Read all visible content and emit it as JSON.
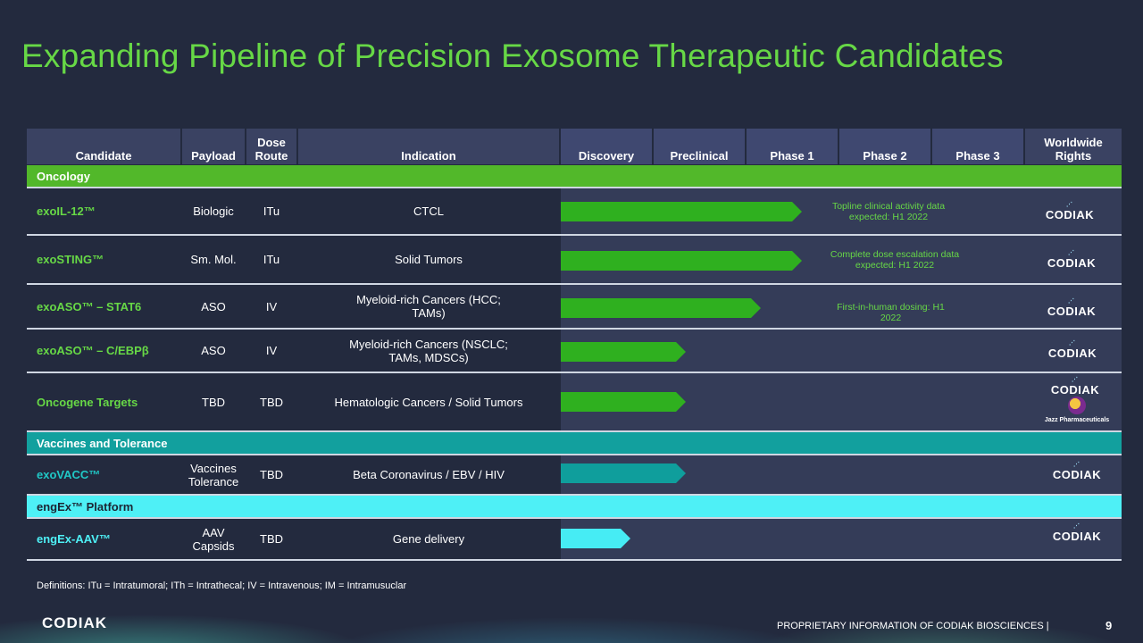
{
  "title": "Expanding Pipeline of Precision Exosome Therapeutic Candidates",
  "headers": {
    "candidate": "Candidate",
    "payload": "Payload",
    "dose_route": "Dose Route",
    "indication": "Indication",
    "discovery": "Discovery",
    "preclinical": "Preclinical",
    "phase1": "Phase 1",
    "phase2": "Phase 2",
    "phase3": "Phase 3",
    "rights": "Worldwide Rights"
  },
  "sections": {
    "oncology": "Oncology",
    "vaccines": "Vaccines and Tolerance",
    "engex": "engEx™ Platform"
  },
  "rows": [
    {
      "candidate": "exoIL-12™",
      "payload": "Biologic",
      "route": "ITu",
      "indication": "CTCL",
      "note": "Topline clinical activity data expected: H1 2022",
      "progress": 2.6,
      "rights": "CODIAK"
    },
    {
      "candidate": "exoSTING™",
      "payload": "Sm. Mol.",
      "route": "ITu",
      "indication": "Solid Tumors",
      "note": "Complete dose escalation data expected: H1 2022",
      "progress": 2.6,
      "rights": "CODIAK"
    },
    {
      "candidate": "exoASO™ – STAT6",
      "payload": "ASO",
      "route": "IV",
      "indication": "Myeloid-rich Cancers (HCC; TAMs)",
      "note": "First-in-human dosing: H1 2022",
      "progress": 2.15,
      "rights": "CODIAK"
    },
    {
      "candidate": "exoASO™ – C/EBPβ",
      "payload": "ASO",
      "route": "IV",
      "indication": "Myeloid-rich Cancers (NSCLC; TAMs, MDSCs)",
      "note": "",
      "progress": 1.35,
      "rights": "CODIAK"
    },
    {
      "candidate": "Oncogene Targets",
      "payload": "TBD",
      "route": "TBD",
      "indication": "Hematologic Cancers / Solid Tumors",
      "note": "",
      "progress": 1.35,
      "rights": "CODIAK",
      "rights2": "Jazz Pharmaceuticals"
    },
    {
      "candidate": "exoVACC™",
      "payload": "Vaccines Tolerance",
      "route": "TBD",
      "indication": "Beta Coronavirus / EBV / HIV",
      "note": "",
      "progress": 1.35,
      "rights": "CODIAK"
    },
    {
      "candidate": "engEx-AAV™",
      "payload": "AAV Capsids",
      "route": "TBD",
      "indication": "Gene delivery",
      "note": "",
      "progress": 0.75,
      "rights": "CODIAK"
    }
  ],
  "definitions": "Definitions: ITu = Intratumoral; ITh = Intrathecal; IV = Intravenous; IM =  Intramusuclar",
  "footer": {
    "proprietary": "PROPRIETARY INFORMATION OF CODIAK BIOSCIENCES  |",
    "page": "9",
    "logo": "CODIAK"
  },
  "colors": {
    "title": "#67d846",
    "oncology": "#52b82a",
    "vaccines": "#12a09e",
    "engex": "#4ef0f6",
    "arrow_oncology": "#2fb01f",
    "arrow_vaccines": "#0f9e9c",
    "arrow_engex": "#46ecf4"
  }
}
